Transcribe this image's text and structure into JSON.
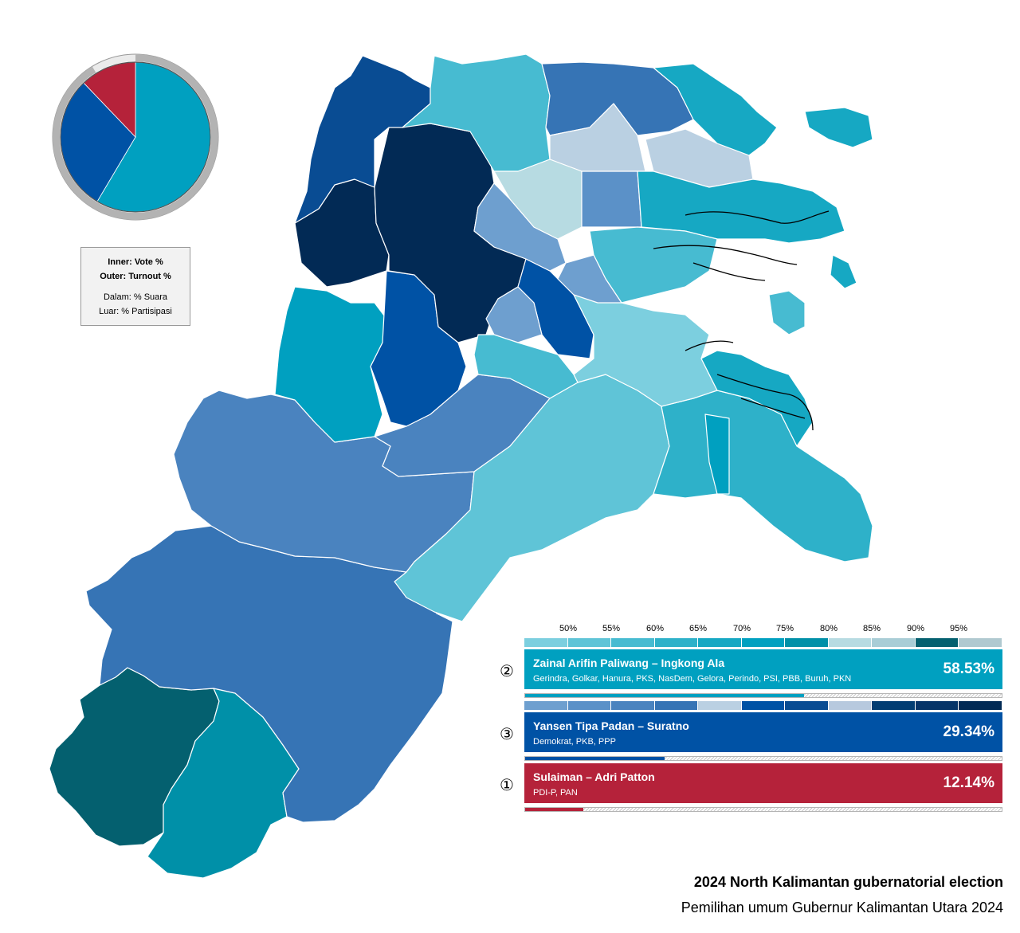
{
  "legend": {
    "line1": "Inner: Vote %",
    "line2": "Outer: Turnout %",
    "line3": "Dalam: % Suara",
    "line4": "Luar: % Partisipasi"
  },
  "pie": {
    "vote_shares": [
      58.53,
      29.34,
      12.14
    ],
    "colors": [
      "#00a0c0",
      "#0052a5",
      "#b5223a"
    ],
    "ring_fill_color": "#b3b3b3",
    "ring_rest_color": "#ebebeb"
  },
  "scale": {
    "labels": [
      "50%",
      "55%",
      "60%",
      "65%",
      "70%",
      "75%",
      "80%",
      "85%",
      "90%",
      "95%"
    ],
    "row1_colors": [
      "#7ccfdf",
      "#5fc4d7",
      "#47bbd1",
      "#2eb1c9",
      "#16a8c3",
      "#00a0c0",
      "#0090a8",
      "#b7dbe2",
      "#a9cdd6",
      "#04606f",
      "#b0c9d0"
    ],
    "row2_colors": [
      "#6e9fcf",
      "#5b91c8",
      "#4a83bf",
      "#3674b5",
      "#bad0e2",
      "#0052a5",
      "#094c93",
      "#b7c9de",
      "#023d73",
      "#063468",
      "#022a55"
    ]
  },
  "candidates": [
    {
      "number": "②",
      "name": "Zainal Arifin Paliwang – Ingkong Ala",
      "parties": "Gerindra, Golkar, Hanura, PKS, NasDem, Gelora, Perindo, PSI, PBB, Buruh, PKN",
      "percent_label": "58.53%",
      "value": 58.53,
      "color": "#00a0c0"
    },
    {
      "number": "③",
      "name": "Yansen Tipa Padan – Suratno",
      "parties": "Demokrat, PKB, PPP",
      "percent_label": "29.34%",
      "value": 29.34,
      "color": "#0052a5"
    },
    {
      "number": "①",
      "name": "Sulaiman – Adri Patton",
      "parties": "PDI-P, PAN",
      "percent_label": "12.14%",
      "value": 12.14,
      "color": "#b5223a"
    }
  ],
  "title": {
    "en": "2024 North Kalimantan gubernatorial election",
    "id": "Pemilihan umum Gubernur Kalimantan Utara 2024"
  }
}
